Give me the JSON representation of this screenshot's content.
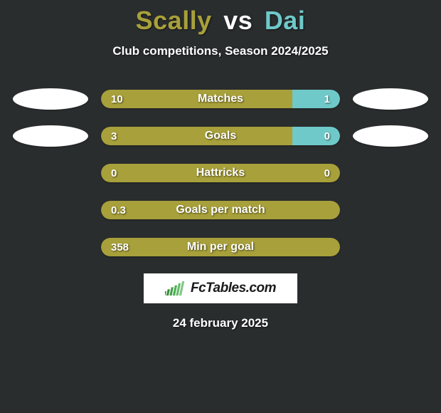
{
  "background_color": "#2a2d2e",
  "title": {
    "player1": "Scally",
    "vs": "vs",
    "player2": "Dai",
    "player1_color": "#a8a03a",
    "player2_color": "#6fc9c9"
  },
  "subtitle": "Club competitions, Season 2024/2025",
  "colors": {
    "player1_bar": "#a8a03a",
    "player2_bar": "#6fc9c9",
    "text": "#ffffff"
  },
  "rows": [
    {
      "metric": "Matches",
      "left_value": "10",
      "right_value": "1",
      "left_pct": 80,
      "right_pct": 20,
      "show_left_bubble": true,
      "show_right_bubble": true
    },
    {
      "metric": "Goals",
      "left_value": "3",
      "right_value": "0",
      "left_pct": 80,
      "right_pct": 20,
      "show_left_bubble": true,
      "show_right_bubble": true
    },
    {
      "metric": "Hattricks",
      "left_value": "0",
      "right_value": "0",
      "left_pct": 100,
      "right_pct": 0,
      "show_left_bubble": false,
      "show_right_bubble": false
    },
    {
      "metric": "Goals per match",
      "left_value": "0.3",
      "right_value": "",
      "left_pct": 100,
      "right_pct": 0,
      "show_left_bubble": false,
      "show_right_bubble": false
    },
    {
      "metric": "Min per goal",
      "left_value": "358",
      "right_value": "",
      "left_pct": 100,
      "right_pct": 0,
      "show_left_bubble": false,
      "show_right_bubble": false
    }
  ],
  "logo": {
    "text": "FcTables.com",
    "bar_colors": [
      "#2e7d32",
      "#388e3c",
      "#43a047",
      "#4caf50",
      "#66bb6a",
      "#81c784"
    ]
  },
  "date": "24 february 2025"
}
